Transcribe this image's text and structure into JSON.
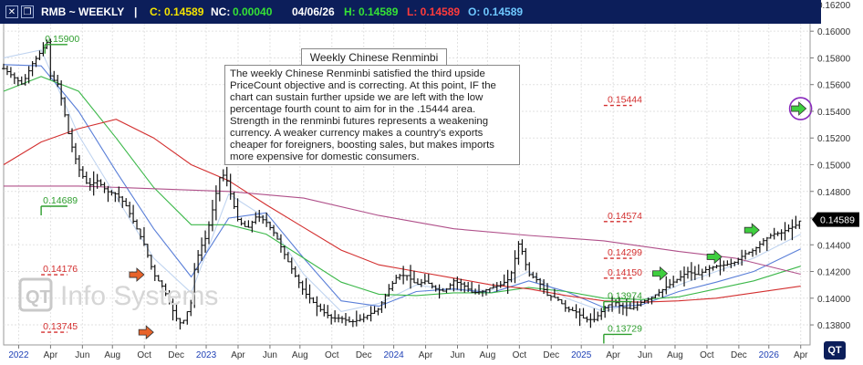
{
  "header": {
    "symbol": "RMB ~ WEEKLY",
    "separator": "|",
    "close_label": "C: 0.14589",
    "netchange_label": "NC:",
    "netchange_value": "0.00040",
    "date": "04/06/26",
    "high_label": "H: 0.14589",
    "low_label": "L: 0.14589",
    "open_label": "O: 0.14589",
    "colors": {
      "close": "#f5e400",
      "netchange": "#35e235",
      "high": "#35e235",
      "low": "#ff3b3b",
      "open": "#6fc8ff",
      "text": "#ffffff"
    },
    "buttons": [
      "close-icon",
      "restore-icon"
    ]
  },
  "annotation": {
    "title": "Weekly Chinese Renminbi",
    "body": "The weekly Chinese Renminbi satisfied the third upside PriceCount objective and is correcting.  At this point, IF the chart can sustain further upside we are left with the low percentage fourth count to aim for in the .15444 area. Strength in the renminbi futures represents a weakening currency.  A weaker currency makes a country's exports cheaper for foreigners, boosting sales, but makes imports more expensive for domestic consumers."
  },
  "watermark": "Info Systems",
  "logo": "QT",
  "chart_data": {
    "type": "candlestick",
    "y_ticks": [
      "0.16200",
      "0.16000",
      "0.15800",
      "0.15600",
      "0.15400",
      "0.15200",
      "0.15000",
      "0.14800",
      "0.14600",
      "0.14400",
      "0.14200",
      "0.14000",
      "0.13800"
    ],
    "ylim": [
      0.1365,
      0.1622
    ],
    "x_ticks": [
      {
        "label": "2022",
        "t": 0.08,
        "year": true
      },
      {
        "label": "Apr",
        "t": 0.25
      },
      {
        "label": "Jun",
        "t": 0.42
      },
      {
        "label": "Aug",
        "t": 0.58
      },
      {
        "label": "Oct",
        "t": 0.75
      },
      {
        "label": "Dec",
        "t": 0.92
      },
      {
        "label": "2023",
        "t": 1.08,
        "year": true
      },
      {
        "label": "Apr",
        "t": 1.25
      },
      {
        "label": "Jun",
        "t": 1.42
      },
      {
        "label": "Aug",
        "t": 1.58
      },
      {
        "label": "Oct",
        "t": 1.75
      },
      {
        "label": "Dec",
        "t": 1.92
      },
      {
        "label": "2024",
        "t": 2.08,
        "year": true
      },
      {
        "label": "Apr",
        "t": 2.25
      },
      {
        "label": "Jun",
        "t": 2.42
      },
      {
        "label": "Aug",
        "t": 2.58
      },
      {
        "label": "Oct",
        "t": 2.75
      },
      {
        "label": "Dec",
        "t": 2.92
      },
      {
        "label": "2025",
        "t": 3.08,
        "year": true
      },
      {
        "label": "Apr",
        "t": 3.25
      },
      {
        "label": "Jun",
        "t": 3.42
      },
      {
        "label": "Aug",
        "t": 3.58
      },
      {
        "label": "Oct",
        "t": 3.75
      },
      {
        "label": "Dec",
        "t": 3.92
      },
      {
        "label": "2026",
        "t": 4.08,
        "year": true
      },
      {
        "label": "Apr",
        "t": 4.25
      }
    ],
    "t_range": [
      0.0,
      4.3
    ],
    "last_price": "0.14589",
    "price_path": [
      [
        0.0,
        0.1572
      ],
      [
        0.05,
        0.1566
      ],
      [
        0.1,
        0.156
      ],
      [
        0.15,
        0.1575
      ],
      [
        0.2,
        0.1585
      ],
      [
        0.23,
        0.1592
      ],
      [
        0.25,
        0.1566
      ],
      [
        0.29,
        0.156
      ],
      [
        0.32,
        0.1542
      ],
      [
        0.35,
        0.152
      ],
      [
        0.4,
        0.1497
      ],
      [
        0.45,
        0.1484
      ],
      [
        0.5,
        0.1488
      ],
      [
        0.55,
        0.148
      ],
      [
        0.6,
        0.1478
      ],
      [
        0.65,
        0.147
      ],
      [
        0.7,
        0.1455
      ],
      [
        0.75,
        0.144
      ],
      [
        0.8,
        0.1418
      ],
      [
        0.85,
        0.1408
      ],
      [
        0.88,
        0.1398
      ],
      [
        0.92,
        0.1385
      ],
      [
        0.95,
        0.138
      ],
      [
        1.0,
        0.1397
      ],
      [
        1.02,
        0.1425
      ],
      [
        1.05,
        0.1438
      ],
      [
        1.08,
        0.1446
      ],
      [
        1.12,
        0.147
      ],
      [
        1.15,
        0.149
      ],
      [
        1.18,
        0.1493
      ],
      [
        1.22,
        0.1473
      ],
      [
        1.25,
        0.1458
      ],
      [
        1.3,
        0.1452
      ],
      [
        1.35,
        0.1462
      ],
      [
        1.4,
        0.1457
      ],
      [
        1.45,
        0.1447
      ],
      [
        1.5,
        0.1432
      ],
      [
        1.55,
        0.1418
      ],
      [
        1.6,
        0.1405
      ],
      [
        1.65,
        0.1397
      ],
      [
        1.7,
        0.139
      ],
      [
        1.75,
        0.1385
      ],
      [
        1.8,
        0.1385
      ],
      [
        1.85,
        0.1382
      ],
      [
        1.9,
        0.1384
      ],
      [
        1.95,
        0.1388
      ],
      [
        2.0,
        0.1392
      ],
      [
        2.05,
        0.1406
      ],
      [
        2.1,
        0.1417
      ],
      [
        2.15,
        0.1417
      ],
      [
        2.2,
        0.141
      ],
      [
        2.25,
        0.1413
      ],
      [
        2.3,
        0.1407
      ],
      [
        2.35,
        0.1405
      ],
      [
        2.4,
        0.1413
      ],
      [
        2.45,
        0.141
      ],
      [
        2.5,
        0.1404
      ],
      [
        2.55,
        0.1405
      ],
      [
        2.6,
        0.1408
      ],
      [
        2.65,
        0.141
      ],
      [
        2.7,
        0.1415
      ],
      [
        2.75,
        0.1443
      ],
      [
        2.78,
        0.1427
      ],
      [
        2.8,
        0.1418
      ],
      [
        2.85,
        0.1413
      ],
      [
        2.9,
        0.1402
      ],
      [
        2.95,
        0.14
      ],
      [
        3.0,
        0.1392
      ],
      [
        3.05,
        0.139
      ],
      [
        3.1,
        0.1384
      ],
      [
        3.15,
        0.1384
      ],
      [
        3.2,
        0.1392
      ],
      [
        3.25,
        0.1398
      ],
      [
        3.3,
        0.1393
      ],
      [
        3.35,
        0.1392
      ],
      [
        3.4,
        0.1397
      ],
      [
        3.45,
        0.14
      ],
      [
        3.5,
        0.1405
      ],
      [
        3.55,
        0.141
      ],
      [
        3.6,
        0.1415
      ],
      [
        3.65,
        0.142
      ],
      [
        3.7,
        0.1417
      ],
      [
        3.75,
        0.1422
      ],
      [
        3.8,
        0.1424
      ],
      [
        3.85,
        0.1425
      ],
      [
        3.9,
        0.1427
      ],
      [
        3.95,
        0.1433
      ],
      [
        4.0,
        0.1436
      ],
      [
        4.05,
        0.1443
      ],
      [
        4.1,
        0.1448
      ],
      [
        4.15,
        0.1449
      ],
      [
        4.18,
        0.1452
      ],
      [
        4.22,
        0.1454
      ],
      [
        4.25,
        0.14589
      ]
    ],
    "moving_averages": [
      {
        "color": "#c0d4f0",
        "points": [
          [
            0.0,
            0.158
          ],
          [
            0.2,
            0.1586
          ],
          [
            0.4,
            0.1522
          ],
          [
            0.6,
            0.1476
          ],
          [
            0.8,
            0.143
          ],
          [
            1.0,
            0.1404
          ],
          [
            1.2,
            0.1478
          ],
          [
            1.4,
            0.146
          ],
          [
            1.6,
            0.1418
          ],
          [
            1.8,
            0.139
          ],
          [
            2.0,
            0.1396
          ],
          [
            2.2,
            0.141
          ],
          [
            2.4,
            0.1406
          ],
          [
            2.6,
            0.1406
          ],
          [
            2.8,
            0.142
          ],
          [
            3.0,
            0.14
          ],
          [
            3.2,
            0.139
          ],
          [
            3.4,
            0.1398
          ],
          [
            3.6,
            0.141
          ],
          [
            3.8,
            0.142
          ],
          [
            4.0,
            0.143
          ],
          [
            4.25,
            0.1448
          ]
        ]
      },
      {
        "color": "#5a7fd8",
        "points": [
          [
            0.0,
            0.1575
          ],
          [
            0.2,
            0.1574
          ],
          [
            0.4,
            0.154
          ],
          [
            0.6,
            0.1495
          ],
          [
            0.8,
            0.1452
          ],
          [
            1.0,
            0.1416
          ],
          [
            1.2,
            0.146
          ],
          [
            1.4,
            0.1464
          ],
          [
            1.6,
            0.143
          ],
          [
            1.8,
            0.1398
          ],
          [
            2.0,
            0.1394
          ],
          [
            2.2,
            0.1405
          ],
          [
            2.4,
            0.1407
          ],
          [
            2.6,
            0.1404
          ],
          [
            2.8,
            0.1413
          ],
          [
            3.0,
            0.1405
          ],
          [
            3.2,
            0.1393
          ],
          [
            3.4,
            0.1395
          ],
          [
            3.6,
            0.1405
          ],
          [
            3.8,
            0.1412
          ],
          [
            4.0,
            0.142
          ],
          [
            4.25,
            0.1437
          ]
        ]
      },
      {
        "color": "#3cb84a",
        "points": [
          [
            0.0,
            0.1555
          ],
          [
            0.2,
            0.1566
          ],
          [
            0.4,
            0.1555
          ],
          [
            0.6,
            0.152
          ],
          [
            0.8,
            0.1483
          ],
          [
            1.0,
            0.1455
          ],
          [
            1.2,
            0.1455
          ],
          [
            1.4,
            0.1448
          ],
          [
            1.6,
            0.143
          ],
          [
            1.8,
            0.1412
          ],
          [
            2.0,
            0.1403
          ],
          [
            2.2,
            0.1402
          ],
          [
            2.4,
            0.1404
          ],
          [
            2.6,
            0.1404
          ],
          [
            2.8,
            0.1408
          ],
          [
            3.0,
            0.1405
          ],
          [
            3.2,
            0.14
          ],
          [
            3.4,
            0.1399
          ],
          [
            3.6,
            0.1401
          ],
          [
            3.8,
            0.1407
          ],
          [
            4.0,
            0.1413
          ],
          [
            4.25,
            0.1424
          ]
        ]
      },
      {
        "color": "#d32f2f",
        "points": [
          [
            0.0,
            0.15
          ],
          [
            0.2,
            0.1517
          ],
          [
            0.4,
            0.1527
          ],
          [
            0.6,
            0.1534
          ],
          [
            0.8,
            0.152
          ],
          [
            1.0,
            0.15
          ],
          [
            1.2,
            0.1488
          ],
          [
            1.4,
            0.147
          ],
          [
            1.6,
            0.1453
          ],
          [
            1.8,
            0.1436
          ],
          [
            2.0,
            0.1425
          ],
          [
            2.2,
            0.142
          ],
          [
            2.4,
            0.1415
          ],
          [
            2.6,
            0.141
          ],
          [
            2.8,
            0.1407
          ],
          [
            3.0,
            0.1402
          ],
          [
            3.2,
            0.1398
          ],
          [
            3.4,
            0.1397
          ],
          [
            3.6,
            0.1398
          ],
          [
            3.8,
            0.14
          ],
          [
            4.0,
            0.1404
          ],
          [
            4.25,
            0.1409
          ]
        ]
      },
      {
        "color": "#b0508a",
        "points": [
          [
            0.0,
            0.1484
          ],
          [
            0.4,
            0.1484
          ],
          [
            0.8,
            0.1482
          ],
          [
            1.2,
            0.148
          ],
          [
            1.6,
            0.1475
          ],
          [
            2.0,
            0.1462
          ],
          [
            2.4,
            0.1452
          ],
          [
            2.8,
            0.1447
          ],
          [
            3.2,
            0.1443
          ],
          [
            3.6,
            0.1435
          ],
          [
            3.9,
            0.143
          ],
          [
            4.25,
            0.1418
          ]
        ]
      }
    ],
    "levels": [
      {
        "label": "0.15900",
        "value": 0.159,
        "color": "#2e9e2e",
        "t0": 0.22,
        "t1": 0.34,
        "tl": 0.22,
        "above": true,
        "tag": true
      },
      {
        "label": "0.14689",
        "value": 0.14689,
        "color": "#2e9e2e",
        "t0": 0.2,
        "t1": 0.34,
        "tl": 0.21,
        "above": true,
        "tag": true
      },
      {
        "label": "0.14176",
        "value": 0.14176,
        "color": "#d32f2f",
        "t0": 0.2,
        "t1": 0.34,
        "tl": 0.21,
        "above": true,
        "tag": false
      },
      {
        "label": "0.13745",
        "value": 0.13745,
        "color": "#d32f2f",
        "t0": 0.2,
        "t1": 0.34,
        "tl": 0.21,
        "above": true,
        "tag": false
      },
      {
        "label": "0.15444",
        "value": 0.15444,
        "color": "#d32f2f",
        "t0": 3.2,
        "t1": 3.35,
        "tl": 3.22,
        "above": true,
        "tag": false
      },
      {
        "label": "0.14574",
        "value": 0.14574,
        "color": "#d32f2f",
        "t0": 3.2,
        "t1": 3.35,
        "tl": 3.22,
        "above": true,
        "tag": false
      },
      {
        "label": "0.14299",
        "value": 0.14299,
        "color": "#d32f2f",
        "t0": 3.2,
        "t1": 3.35,
        "tl": 3.22,
        "above": true,
        "tag": false
      },
      {
        "label": "0.14150",
        "value": 0.1415,
        "color": "#d32f2f",
        "t0": 3.2,
        "t1": 3.35,
        "tl": 3.22,
        "above": true,
        "tag": false
      },
      {
        "label": "0.13974",
        "value": 0.13974,
        "color": "#2e9e2e",
        "t0": 3.2,
        "t1": 3.35,
        "tl": 3.22,
        "above": true,
        "tag": true
      },
      {
        "label": "0.13729",
        "value": 0.13729,
        "color": "#2e9e2e",
        "t0": 3.2,
        "t1": 3.35,
        "tl": 3.22,
        "above": true,
        "tag": true
      }
    ],
    "arrows": [
      {
        "t": 0.7,
        "value": 0.14176,
        "color": "#e8632a"
      },
      {
        "t": 0.75,
        "value": 0.13745,
        "color": "#e8632a"
      },
      {
        "t": 3.49,
        "value": 0.14185,
        "color": "#3fcf3f"
      },
      {
        "t": 3.78,
        "value": 0.1431,
        "color": "#3fcf3f"
      },
      {
        "t": 3.98,
        "value": 0.1451,
        "color": "#3fcf3f"
      },
      {
        "t": 4.23,
        "value": 0.1542,
        "color": "#3fcf3f",
        "circle": true
      }
    ]
  }
}
